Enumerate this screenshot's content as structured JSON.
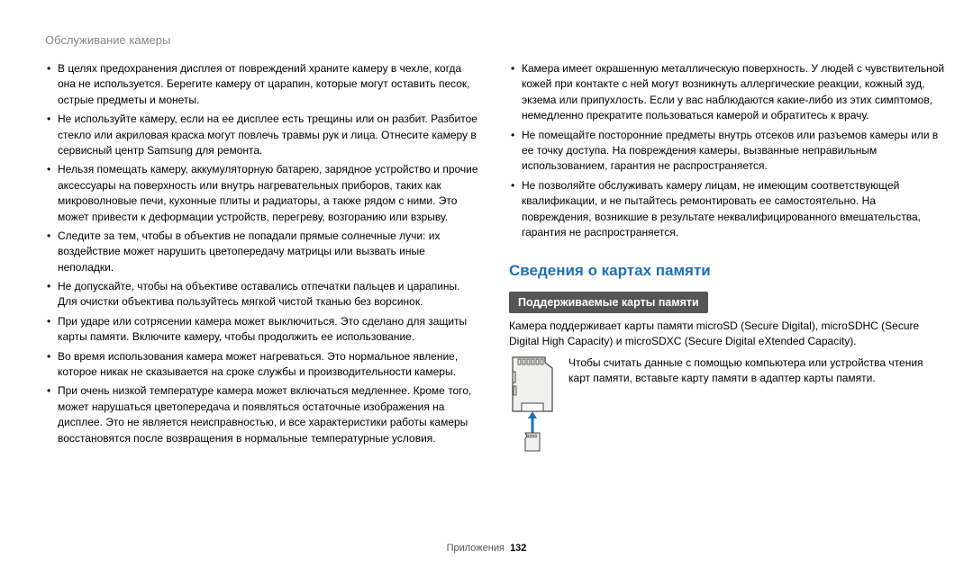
{
  "header": "Обслуживание камеры",
  "leftBullets": [
    "В целях предохранения дисплея от повреждений храните камеру в чехле, когда она не используется. Берегите камеру от царапин, которые могут оставить песок, острые предметы и монеты.",
    "Не используйте камеру, если на ее дисплее есть трещины или он разбит. Разбитое стекло или акриловая краска могут повлечь травмы рук и лица. Отнесите камеру в сервисный центр Samsung для ремонта.",
    "Нельзя помещать камеру, аккумуляторную батарею, зарядное устройство и прочие аксессуары на поверхность или внутрь нагревательных приборов, таких как микроволновые печи, кухонные плиты и радиаторы, а также рядом с ними. Это может привести к деформации устройств, перегреву, возгоранию или взрыву.",
    "Следите за тем, чтобы в объектив не попадали прямые солнечные лучи: их воздействие может нарушить цветопередачу матрицы или вызвать иные неполадки.",
    "Не допускайте, чтобы на объективе оставались отпечатки пальцев и царапины. Для очистки объектива пользуйтесь мягкой чистой тканью без ворсинок.",
    "При ударе или сотрясении камера может выключиться. Это сделано для защиты карты памяти. Включите камеру, чтобы продолжить ее использование.",
    "Во время использования камера может нагреваться. Это нормальное явление, которое никак не сказывается на сроке службы и производительности камеры.",
    "При очень низкой температуре камера может включаться медленнее. Кроме того, может нарушаться цветопередача и появляться остаточные изображения на дисплее. Это не является неисправностью, и все характеристики работы камеры восстановятся после возвращения в нормальные температурные условия."
  ],
  "rightBullets": [
    "Камера имеет окрашенную металлическую поверхность. У людей с чувствительной кожей при контакте с ней могут возникнуть аллергические реакции, кожный зуд, экзема или припухлость. Если у вас наблюдаются какие-либо из этих симптомов, немедленно прекратите пользоваться камерой и обратитесь к врачу.",
    "Не помещайте посторонние предметы внутрь отсеков или разъемов камеры или в ее точку доступа. На повреждения камеры, вызванные неправильным использованием, гарантия не распространяется.",
    "Не позволяйте обслуживать камеру лицам, не имеющим соответствующей квалификации, и не пытайтесь ремонтировать ее самостоятельно. На повреждения, возникшие в результате неквалифицированного вмешательства, гарантия не распространяется."
  ],
  "sectionTitle": "Сведения о картах памяти",
  "subhead": "Поддерживаемые карты памяти",
  "supportedText": "Камера поддерживает карты памяти microSD (Secure Digital), microSDHC (Secure Digital High Capacity) и microSDXC (Secure Digital eXtended Capacity).",
  "adapterText": "Чтобы считать данные с помощью компьютера или устройства чтения карт памяти, вставьте карту памяти в адаптер карты памяти.",
  "footerLabel": "Приложения",
  "footerPage": "132",
  "colors": {
    "headerGray": "#888888",
    "titleBlue": "#1d70b8",
    "subheadBg": "#555555",
    "arrowBlue": "#1d70b8",
    "cardStroke": "#444444",
    "cardFill": "#f0f0ee"
  }
}
